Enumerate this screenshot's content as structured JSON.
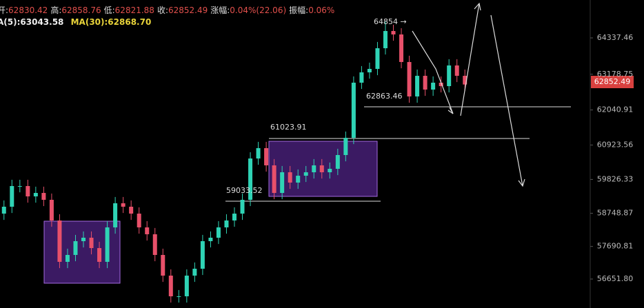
{
  "header": {
    "items": [
      {
        "label": "开:",
        "value": "62830.42"
      },
      {
        "label": "高:",
        "value": "62858.76"
      },
      {
        "label": "低:",
        "value": "62821.88"
      },
      {
        "label": "收:",
        "value": "62852.49"
      },
      {
        "label": "涨幅:",
        "value": "0.04%(22.06)"
      },
      {
        "label": "振幅:",
        "value": "0.06%"
      }
    ]
  },
  "ma_legend": [
    "A(5):63043.58",
    "MA(30):62868.70"
  ],
  "chart_data": {
    "type": "candlestick",
    "up_color": "#2fd3b5",
    "down_color": "#e8506a",
    "ylim": [
      55729,
      65545
    ],
    "yticks": [
      64337.46,
      63178.75,
      62040.91,
      60923.56,
      59826.33,
      58748.87,
      57690.81,
      {
        "value": 56651.8,
        "label": "56651.80"
      }
    ],
    "annotations": [
      "64854 →",
      "62863.46",
      "61023.91",
      "59033.52"
    ],
    "last_price_label": "62852.49",
    "open": [
      58737,
      58957,
      59616,
      59616,
      59286,
      59396,
      59177,
      58518,
      57200,
      57420,
      57859,
      57969,
      57639,
      57200,
      58298,
      59067,
      58957,
      58737,
      58298,
      58079,
      57420,
      56761,
      56102,
      56102,
      56761,
      56981,
      57859,
      57969,
      58298,
      58518,
      58737,
      59177,
      60494,
      60824,
      60275,
      59396,
      60055,
      59726,
      59945,
      60055,
      60275,
      60055,
      60165,
      60604,
      61153,
      62910,
      63239,
      63349,
      64008,
      64557,
      64447,
      63569,
      62471,
      63129,
      62690,
      62910,
      62800,
      63459,
      63129
    ],
    "high": [
      59157,
      59816,
      59816,
      59816,
      59596,
      59596,
      59377,
      58718,
      57620,
      58059,
      58169,
      58169,
      57839,
      58498,
      59267,
      59267,
      59157,
      58937,
      58498,
      58279,
      57620,
      56961,
      56302,
      56961,
      57181,
      58059,
      58169,
      58498,
      58718,
      58937,
      59377,
      60694,
      61024,
      61024,
      60475,
      60255,
      60255,
      60145,
      60255,
      60475,
      60475,
      60365,
      60804,
      61353,
      63110,
      63439,
      63549,
      64208,
      64854,
      64757,
      64647,
      63769,
      63329,
      63329,
      63110,
      63110,
      63659,
      63659,
      63329
    ],
    "low": [
      58537,
      58757,
      59416,
      59086,
      59086,
      58977,
      58318,
      57000,
      57000,
      57220,
      57659,
      57439,
      57000,
      57000,
      58098,
      58757,
      58537,
      58098,
      57879,
      57220,
      56561,
      55902,
      55902,
      55902,
      56561,
      56781,
      57659,
      57769,
      58098,
      58318,
      58537,
      58977,
      60294,
      60075,
      59196,
      59196,
      59526,
      59526,
      59745,
      59855,
      59855,
      59855,
      59965,
      60404,
      60953,
      62710,
      63039,
      63149,
      63808,
      64247,
      63369,
      62271,
      62271,
      62490,
      62490,
      62600,
      62600,
      62929,
      62652
    ],
    "close": [
      58957,
      59616,
      59616,
      59286,
      59396,
      59177,
      58518,
      57200,
      57420,
      57859,
      57969,
      57639,
      57200,
      58298,
      59067,
      58957,
      58737,
      58298,
      58079,
      57420,
      56761,
      56102,
      56102,
      56761,
      56981,
      57859,
      57969,
      58298,
      58518,
      58737,
      59177,
      60494,
      60824,
      60275,
      59396,
      60055,
      59726,
      59945,
      60055,
      60275,
      60055,
      60165,
      60604,
      61153,
      62910,
      63239,
      63349,
      64008,
      64557,
      64447,
      63569,
      62471,
      63129,
      62690,
      62910,
      62800,
      63459,
      63129,
      62852
    ]
  }
}
